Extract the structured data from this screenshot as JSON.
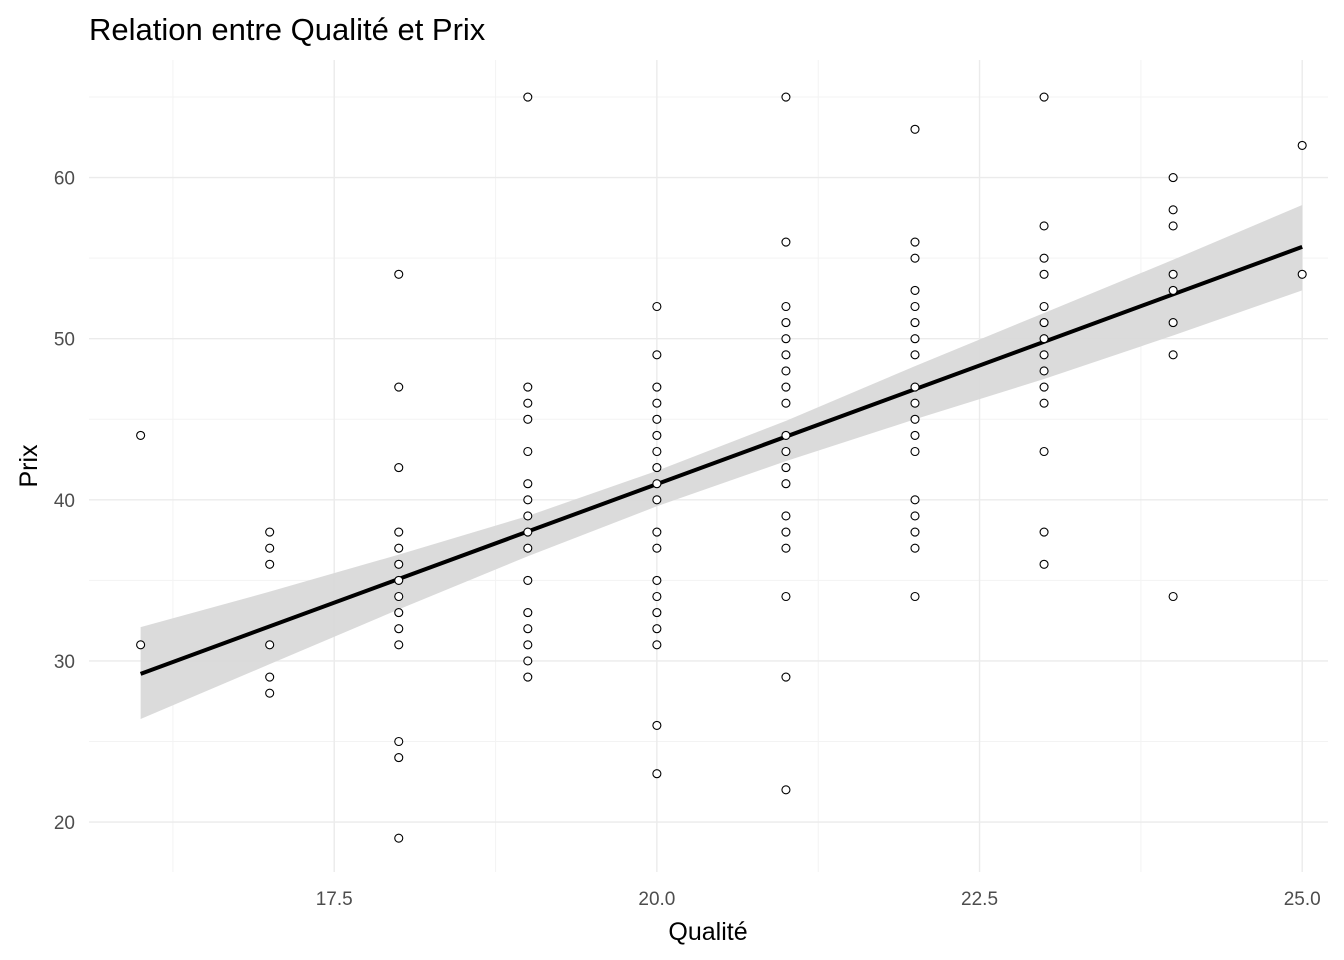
{
  "chart_data": {
    "type": "scatter",
    "title": "Relation entre Qualité et Prix",
    "xlabel": "Qualité",
    "ylabel": "Prix",
    "xlim": [
      15.6,
      25.2
    ],
    "ylim": [
      16.9,
      67.3
    ],
    "x_ticks": [
      17.5,
      20.0,
      22.5,
      25.0
    ],
    "x_tick_labels": [
      "17.5",
      "20.0",
      "22.5",
      "25.0"
    ],
    "y_ticks": [
      20,
      30,
      40,
      50,
      60
    ],
    "y_tick_labels": [
      "20",
      "30",
      "40",
      "50",
      "60"
    ],
    "grid": true,
    "legend": "none",
    "points": [
      {
        "x": 16,
        "y": 44
      },
      {
        "x": 16,
        "y": 31
      },
      {
        "x": 17,
        "y": 38
      },
      {
        "x": 17,
        "y": 37
      },
      {
        "x": 17,
        "y": 36
      },
      {
        "x": 17,
        "y": 31
      },
      {
        "x": 17,
        "y": 29
      },
      {
        "x": 17,
        "y": 28
      },
      {
        "x": 18,
        "y": 54
      },
      {
        "x": 18,
        "y": 47
      },
      {
        "x": 18,
        "y": 42
      },
      {
        "x": 18,
        "y": 38
      },
      {
        "x": 18,
        "y": 37
      },
      {
        "x": 18,
        "y": 36
      },
      {
        "x": 18,
        "y": 35
      },
      {
        "x": 18,
        "y": 34
      },
      {
        "x": 18,
        "y": 33
      },
      {
        "x": 18,
        "y": 32
      },
      {
        "x": 18,
        "y": 31
      },
      {
        "x": 18,
        "y": 25
      },
      {
        "x": 18,
        "y": 24
      },
      {
        "x": 18,
        "y": 19
      },
      {
        "x": 19,
        "y": 65
      },
      {
        "x": 19,
        "y": 47
      },
      {
        "x": 19,
        "y": 46
      },
      {
        "x": 19,
        "y": 45
      },
      {
        "x": 19,
        "y": 43
      },
      {
        "x": 19,
        "y": 41
      },
      {
        "x": 19,
        "y": 40
      },
      {
        "x": 19,
        "y": 39
      },
      {
        "x": 19,
        "y": 38
      },
      {
        "x": 19,
        "y": 37
      },
      {
        "x": 19,
        "y": 35
      },
      {
        "x": 19,
        "y": 33
      },
      {
        "x": 19,
        "y": 32
      },
      {
        "x": 19,
        "y": 31
      },
      {
        "x": 19,
        "y": 30
      },
      {
        "x": 19,
        "y": 29
      },
      {
        "x": 20,
        "y": 52
      },
      {
        "x": 20,
        "y": 49
      },
      {
        "x": 20,
        "y": 47
      },
      {
        "x": 20,
        "y": 46
      },
      {
        "x": 20,
        "y": 45
      },
      {
        "x": 20,
        "y": 44
      },
      {
        "x": 20,
        "y": 43
      },
      {
        "x": 20,
        "y": 42
      },
      {
        "x": 20,
        "y": 41
      },
      {
        "x": 20,
        "y": 40
      },
      {
        "x": 20,
        "y": 38
      },
      {
        "x": 20,
        "y": 37
      },
      {
        "x": 20,
        "y": 35
      },
      {
        "x": 20,
        "y": 34
      },
      {
        "x": 20,
        "y": 33
      },
      {
        "x": 20,
        "y": 32
      },
      {
        "x": 20,
        "y": 31
      },
      {
        "x": 20,
        "y": 26
      },
      {
        "x": 20,
        "y": 23
      },
      {
        "x": 21,
        "y": 65
      },
      {
        "x": 21,
        "y": 56
      },
      {
        "x": 21,
        "y": 52
      },
      {
        "x": 21,
        "y": 51
      },
      {
        "x": 21,
        "y": 50
      },
      {
        "x": 21,
        "y": 49
      },
      {
        "x": 21,
        "y": 48
      },
      {
        "x": 21,
        "y": 47
      },
      {
        "x": 21,
        "y": 46
      },
      {
        "x": 21,
        "y": 44
      },
      {
        "x": 21,
        "y": 43
      },
      {
        "x": 21,
        "y": 42
      },
      {
        "x": 21,
        "y": 41
      },
      {
        "x": 21,
        "y": 39
      },
      {
        "x": 21,
        "y": 38
      },
      {
        "x": 21,
        "y": 37
      },
      {
        "x": 21,
        "y": 34
      },
      {
        "x": 21,
        "y": 29
      },
      {
        "x": 21,
        "y": 22
      },
      {
        "x": 22,
        "y": 63
      },
      {
        "x": 22,
        "y": 56
      },
      {
        "x": 22,
        "y": 55
      },
      {
        "x": 22,
        "y": 53
      },
      {
        "x": 22,
        "y": 52
      },
      {
        "x": 22,
        "y": 51
      },
      {
        "x": 22,
        "y": 50
      },
      {
        "x": 22,
        "y": 49
      },
      {
        "x": 22,
        "y": 47
      },
      {
        "x": 22,
        "y": 46
      },
      {
        "x": 22,
        "y": 45
      },
      {
        "x": 22,
        "y": 44
      },
      {
        "x": 22,
        "y": 43
      },
      {
        "x": 22,
        "y": 40
      },
      {
        "x": 22,
        "y": 39
      },
      {
        "x": 22,
        "y": 38
      },
      {
        "x": 22,
        "y": 37
      },
      {
        "x": 22,
        "y": 34
      },
      {
        "x": 23,
        "y": 65
      },
      {
        "x": 23,
        "y": 57
      },
      {
        "x": 23,
        "y": 55
      },
      {
        "x": 23,
        "y": 54
      },
      {
        "x": 23,
        "y": 52
      },
      {
        "x": 23,
        "y": 51
      },
      {
        "x": 23,
        "y": 50
      },
      {
        "x": 23,
        "y": 49
      },
      {
        "x": 23,
        "y": 48
      },
      {
        "x": 23,
        "y": 47
      },
      {
        "x": 23,
        "y": 46
      },
      {
        "x": 23,
        "y": 43
      },
      {
        "x": 23,
        "y": 38
      },
      {
        "x": 23,
        "y": 36
      },
      {
        "x": 24,
        "y": 60
      },
      {
        "x": 24,
        "y": 58
      },
      {
        "x": 24,
        "y": 57
      },
      {
        "x": 24,
        "y": 54
      },
      {
        "x": 24,
        "y": 53
      },
      {
        "x": 24,
        "y": 51
      },
      {
        "x": 24,
        "y": 49
      },
      {
        "x": 24,
        "y": 34
      },
      {
        "x": 25,
        "y": 62
      },
      {
        "x": 25,
        "y": 54
      }
    ],
    "regression": {
      "method": "lm",
      "line": {
        "x": [
          16,
          25
        ],
        "y": [
          29.2,
          55.7
        ]
      },
      "confidence_band": {
        "x": [
          16,
          17,
          18,
          19,
          20,
          21,
          22,
          23,
          24,
          25
        ],
        "lower": [
          26.4,
          29.8,
          33.2,
          36.5,
          39.6,
          42.4,
          45.0,
          47.5,
          50.2,
          53.0
        ],
        "upper": [
          32.1,
          34.3,
          36.6,
          39.0,
          41.8,
          44.9,
          48.3,
          51.6,
          54.9,
          58.3
        ]
      }
    },
    "colors": {
      "points_stroke": "#000000",
      "points_fill": "#ffffff",
      "line": "#000000",
      "band": "#d9d9d9",
      "grid_major": "#ebebeb",
      "grid_minor": "#f3f3f3",
      "tick_text": "#4d4d4d"
    }
  }
}
